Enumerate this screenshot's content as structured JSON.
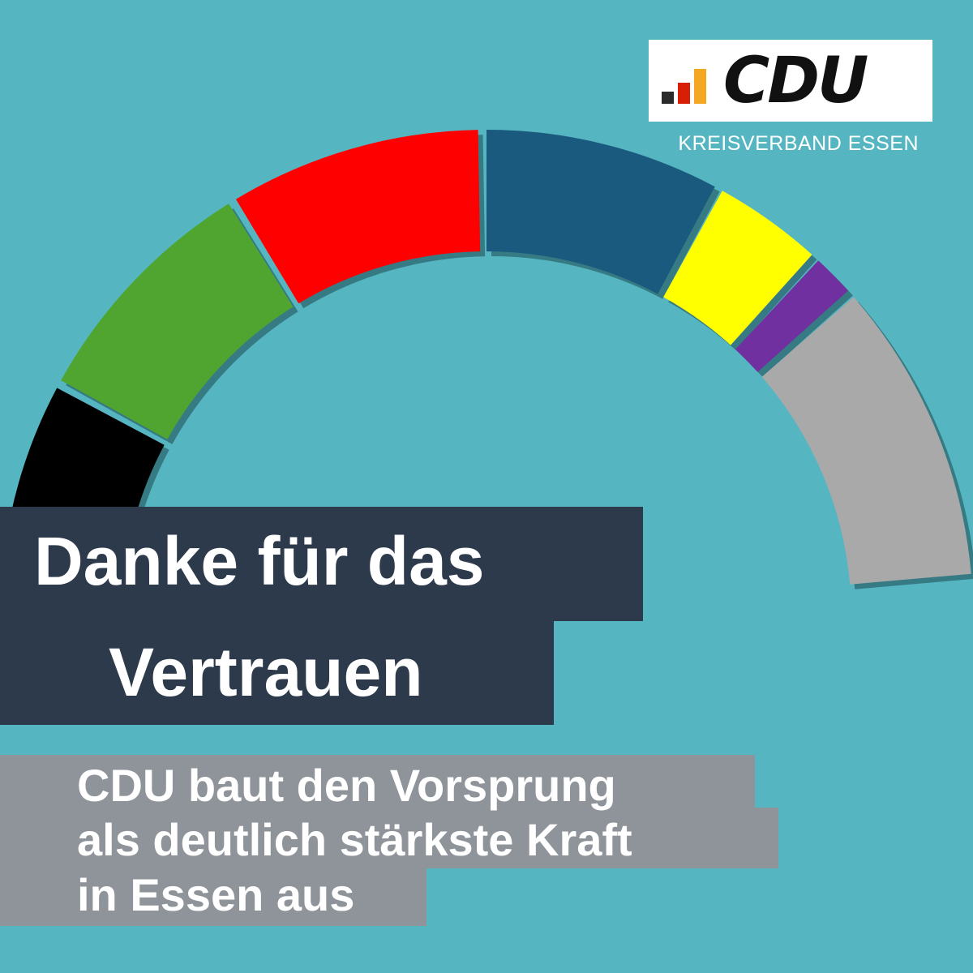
{
  "logo": {
    "wordmark": "CDU",
    "subtitle": "KREISVERBAND ESSEN",
    "bar_colors": [
      "#2a2a2a",
      "#d81e05",
      "#f5a623"
    ]
  },
  "headline": {
    "line1": "Danke für das",
    "line2": "Vertrauen"
  },
  "subline": {
    "line1": "CDU baut den Vorsprung",
    "line2": "als deutlich stärkste Kraft",
    "line3": "in Essen aus"
  },
  "seat_arc": {
    "segments": [
      {
        "name": "black-segment",
        "color": "#000000"
      },
      {
        "name": "green-segment",
        "color": "#4fa52f"
      },
      {
        "name": "red-segment",
        "color": "#ff0000"
      },
      {
        "name": "blue-segment",
        "color": "#1a5a7e"
      },
      {
        "name": "yellow-segment",
        "color": "#ffff00"
      },
      {
        "name": "purple-segment",
        "color": "#7030a0"
      },
      {
        "name": "grey-segment",
        "color": "#a9a9a9"
      }
    ]
  },
  "colors": {
    "background": "#55b6c2",
    "headline_bg": "#2c3a4b",
    "subline_bg": "#8e9499"
  }
}
